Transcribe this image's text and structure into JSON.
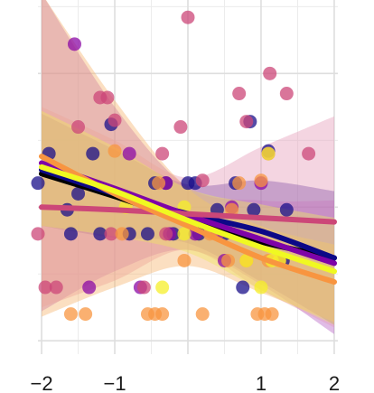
{
  "chart_data": {
    "type": "scatter",
    "title": "",
    "xlabel": "",
    "ylabel": "",
    "xlim": [
      -2.05,
      2.05
    ],
    "ylim": [
      -0.1,
      2.55
    ],
    "x_ticks": [
      -2,
      -1,
      0,
      1,
      2
    ],
    "x_tick_labels": [
      "−2",
      "−1",
      "",
      "1",
      "2"
    ],
    "y_ticks": [
      0,
      1,
      2
    ],
    "y_tick_labels": [
      "",
      "",
      ""
    ],
    "grid": true,
    "legend": "none",
    "series": [
      {
        "color": "#0d0887",
        "point_color": "#1a0f8a",
        "band_color": "#4b2a9f",
        "fit": [
          [
            -2,
            1.28
          ],
          [
            -1,
            1.1
          ],
          [
            0,
            0.95
          ],
          [
            1,
            0.82
          ],
          [
            2,
            0.62
          ]
        ],
        "band_upper": [
          [
            -2,
            1.7
          ],
          [
            -1,
            1.43
          ],
          [
            0,
            1.17
          ],
          [
            1,
            1.2
          ],
          [
            2,
            1.12
          ]
        ],
        "band_lower": [
          [
            -2,
            0.86
          ],
          [
            -1,
            0.77
          ],
          [
            0,
            0.73
          ],
          [
            1,
            0.44
          ],
          [
            2,
            0.12
          ]
        ],
        "points": [
          [
            -2.05,
            1.18
          ],
          [
            -1.9,
            1.4
          ],
          [
            -1.65,
            0.98
          ],
          [
            -1.6,
            0.8
          ],
          [
            -1.5,
            1.1
          ],
          [
            -1.3,
            1.4
          ],
          [
            -1.2,
            0.8
          ],
          [
            -1.05,
            1.62
          ],
          [
            -0.8,
            0.8
          ],
          [
            -0.55,
            0.8
          ],
          [
            -0.45,
            1.18
          ],
          [
            -0.3,
            1.18
          ],
          [
            -0.2,
            0.8
          ],
          [
            0,
            1.18
          ],
          [
            0.1,
            1.18
          ],
          [
            0.15,
            0.8
          ],
          [
            0.4,
            0.98
          ],
          [
            0.5,
            0.8
          ],
          [
            0.65,
            1.18
          ],
          [
            0.75,
            0.4
          ],
          [
            0.85,
            1.64
          ],
          [
            0.9,
            0.98
          ],
          [
            1.1,
            1.42
          ],
          [
            1.3,
            0.6
          ],
          [
            1.35,
            0.98
          ]
        ]
      },
      {
        "color": "#7e03a8",
        "point_color": "#8b0aa5",
        "band_color": "#b45fc4",
        "fit": [
          [
            -2,
            1.33
          ],
          [
            -1,
            1.14
          ],
          [
            0,
            0.94
          ],
          [
            1,
            0.76
          ],
          [
            2,
            0.58
          ]
        ],
        "band_upper": [
          [
            -2,
            2.6
          ],
          [
            -1,
            1.75
          ],
          [
            0,
            1.15
          ],
          [
            1,
            1.05
          ],
          [
            2,
            1.05
          ]
        ],
        "band_lower": [
          [
            -2,
            0.22
          ],
          [
            -1,
            0.52
          ],
          [
            0,
            0.68
          ],
          [
            1,
            0.42
          ],
          [
            2,
            0.05
          ]
        ],
        "points": [
          [
            -1.55,
            2.22
          ],
          [
            -1.35,
            0.4
          ],
          [
            -0.8,
            1.4
          ],
          [
            -0.65,
            0.4
          ],
          [
            -0.3,
            1.18
          ],
          [
            -0.25,
            0.8
          ],
          [
            0.1,
            0.8
          ],
          [
            0.5,
            0.6
          ],
          [
            0.6,
            1.0
          ],
          [
            1.0,
            1.18
          ]
        ]
      },
      {
        "color": "#cc4778",
        "point_color": "#cc4778",
        "band_color": "#e59bb8",
        "fit": [
          [
            -2,
            1.0
          ],
          [
            -1,
            0.98
          ],
          [
            0,
            0.95
          ],
          [
            1,
            0.92
          ],
          [
            2,
            0.89
          ]
        ],
        "band_upper": [
          [
            -2,
            1.75
          ],
          [
            -1,
            1.5
          ],
          [
            0,
            1.22
          ],
          [
            1,
            1.45
          ],
          [
            2,
            1.68
          ]
        ],
        "band_lower": [
          [
            -2,
            0.25
          ],
          [
            -1,
            0.45
          ],
          [
            0,
            0.68
          ],
          [
            1,
            0.38
          ],
          [
            2,
            0.1
          ]
        ],
        "points": [
          [
            -2.05,
            0.8
          ],
          [
            -1.95,
            0.4
          ],
          [
            -1.8,
            0.4
          ],
          [
            -1.5,
            1.6
          ],
          [
            -1.2,
            1.82
          ],
          [
            -1.1,
            1.82
          ],
          [
            -1.05,
            0.8
          ],
          [
            -1.0,
            1.65
          ],
          [
            -0.6,
            0.4
          ],
          [
            -0.35,
            1.4
          ],
          [
            -0.3,
            0.8
          ],
          [
            -0.1,
            1.6
          ],
          [
            0,
            2.42
          ],
          [
            0.2,
            1.2
          ],
          [
            0.4,
            0.8
          ],
          [
            0.7,
            1.85
          ],
          [
            0.8,
            1.64
          ],
          [
            1.1,
            1.4
          ],
          [
            1.12,
            2.0
          ],
          [
            1.35,
            1.85
          ],
          [
            1.65,
            1.4
          ]
        ]
      },
      {
        "color": "#f89540",
        "point_color": "#f89540",
        "band_color": "#f6b26b",
        "fit": [
          [
            -2,
            1.38
          ],
          [
            -1,
            1.1
          ],
          [
            0,
            0.86
          ],
          [
            1,
            0.62
          ],
          [
            2,
            0.44
          ]
        ],
        "band_upper": [
          [
            -2,
            2.6
          ],
          [
            -1,
            1.8
          ],
          [
            0,
            1.14
          ],
          [
            1,
            0.86
          ],
          [
            2,
            0.72
          ]
        ],
        "band_lower": [
          [
            -2,
            0.18
          ],
          [
            -1,
            0.4
          ],
          [
            0,
            0.56
          ],
          [
            1,
            0.36
          ],
          [
            2,
            0.14
          ]
        ],
        "points": [
          [
            -1.6,
            0.2
          ],
          [
            -1.4,
            0.2
          ],
          [
            -1.0,
            1.42
          ],
          [
            -0.9,
            0.8
          ],
          [
            -0.55,
            0.2
          ],
          [
            -0.45,
            0.2
          ],
          [
            -0.35,
            0.2
          ],
          [
            -0.4,
            1.18
          ],
          [
            -0.05,
            0.6
          ],
          [
            0.2,
            0.2
          ],
          [
            0.3,
            0.8
          ],
          [
            0.55,
            0.6
          ],
          [
            0.6,
            0.98
          ],
          [
            0.7,
            1.18
          ],
          [
            0.8,
            0.6
          ],
          [
            0.95,
            0.2
          ],
          [
            1.0,
            1.2
          ],
          [
            1.05,
            0.2
          ],
          [
            1.1,
            0.6
          ],
          [
            1.15,
            0.2
          ],
          [
            1.25,
            0.6
          ]
        ]
      },
      {
        "color": "#f0f921",
        "point_color": "#f5ef2a",
        "band_color": "#eee860",
        "fit": [
          [
            -2,
            1.3
          ],
          [
            -1,
            1.12
          ],
          [
            0,
            0.9
          ],
          [
            1,
            0.7
          ],
          [
            2,
            0.52
          ]
        ],
        "band_upper": [
          [
            -2,
            1.72
          ],
          [
            -1,
            1.45
          ],
          [
            0,
            1.14
          ],
          [
            1,
            1.02
          ],
          [
            2,
            0.92
          ]
        ],
        "band_lower": [
          [
            -2,
            0.86
          ],
          [
            -1,
            0.78
          ],
          [
            0,
            0.66
          ],
          [
            1,
            0.38
          ],
          [
            2,
            0.12
          ]
        ],
        "points": [
          [
            -0.85,
            1.0
          ],
          [
            -0.35,
            0.4
          ],
          [
            -0.05,
            1.0
          ],
          [
            -0.05,
            0.8
          ],
          [
            0.8,
            0.6
          ],
          [
            1.0,
            0.4
          ],
          [
            1.1,
            1.4
          ],
          [
            1.15,
            0.6
          ],
          [
            1.25,
            0.6
          ]
        ]
      },
      {
        "color": "#000000",
        "point_color": "#000000",
        "band_color": "#9a9a9a",
        "fit": [
          [
            -2,
            1.25
          ],
          [
            -1,
            1.08
          ],
          [
            0,
            0.9
          ],
          [
            1,
            0.74
          ],
          [
            2,
            0.62
          ]
        ],
        "band_upper": [
          [
            -2,
            1.25
          ],
          [
            -1,
            1.08
          ],
          [
            0,
            0.9
          ],
          [
            1,
            0.74
          ],
          [
            2,
            0.62
          ]
        ],
        "band_lower": [
          [
            -2,
            1.25
          ],
          [
            -1,
            1.08
          ],
          [
            0,
            0.9
          ],
          [
            1,
            0.74
          ],
          [
            2,
            0.62
          ]
        ],
        "points": []
      }
    ]
  }
}
